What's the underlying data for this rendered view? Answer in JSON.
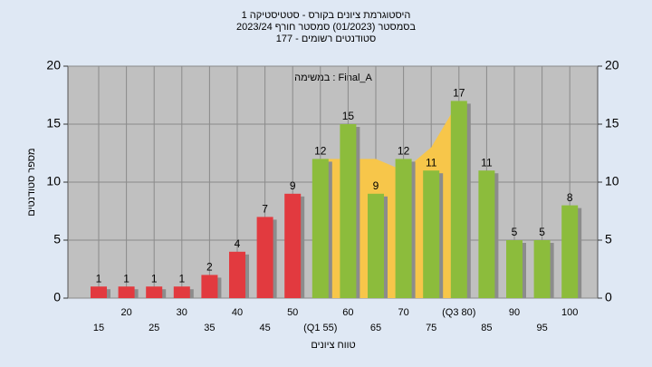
{
  "chart_data": {
    "type": "bar",
    "title": "היסטוגרמת ציונים בקורס - סטטיסטיקה 1",
    "subtitle": "בסמסטר  (01/2023)  סמסטר חורף 2023/24",
    "subtitle2": "סטודנטים רשומים - 177",
    "annotation": "במשימה : Final_A",
    "x_label": "טווח ציונים",
    "y_label": "מספר סטודנטים",
    "categories": [
      "15",
      "20",
      "25",
      "30",
      "35",
      "40",
      "45",
      "50",
      "(Q1 55)",
      "60",
      "65",
      "70",
      "75",
      "(Q3 80)",
      "85",
      "90",
      "95",
      "100"
    ],
    "values": [
      1,
      1,
      1,
      1,
      2,
      4,
      7,
      9,
      12,
      15,
      9,
      12,
      11,
      17,
      11,
      5,
      5,
      8
    ],
    "colors": [
      "#e23a3f",
      "#e23a3f",
      "#e23a3f",
      "#e23a3f",
      "#e23a3f",
      "#e23a3f",
      "#e23a3f",
      "#e23a3f",
      "#8cbc3c",
      "#8cbc3c",
      "#8cbc3c",
      "#8cbc3c",
      "#8cbc3c",
      "#8cbc3c",
      "#8cbc3c",
      "#8cbc3c",
      "#8cbc3c",
      "#8cbc3c"
    ],
    "area": {
      "color": "#f7c64a",
      "values": [
        null,
        null,
        null,
        null,
        null,
        null,
        null,
        null,
        12,
        12,
        12,
        11,
        13,
        17,
        null,
        null,
        null,
        null
      ]
    },
    "ylim": [
      0,
      20
    ],
    "yticks": [
      0,
      5,
      10,
      15,
      20
    ],
    "y2lim": [
      0,
      20
    ],
    "y2ticks": [
      0,
      5,
      10,
      15,
      20
    ],
    "grid": true
  }
}
